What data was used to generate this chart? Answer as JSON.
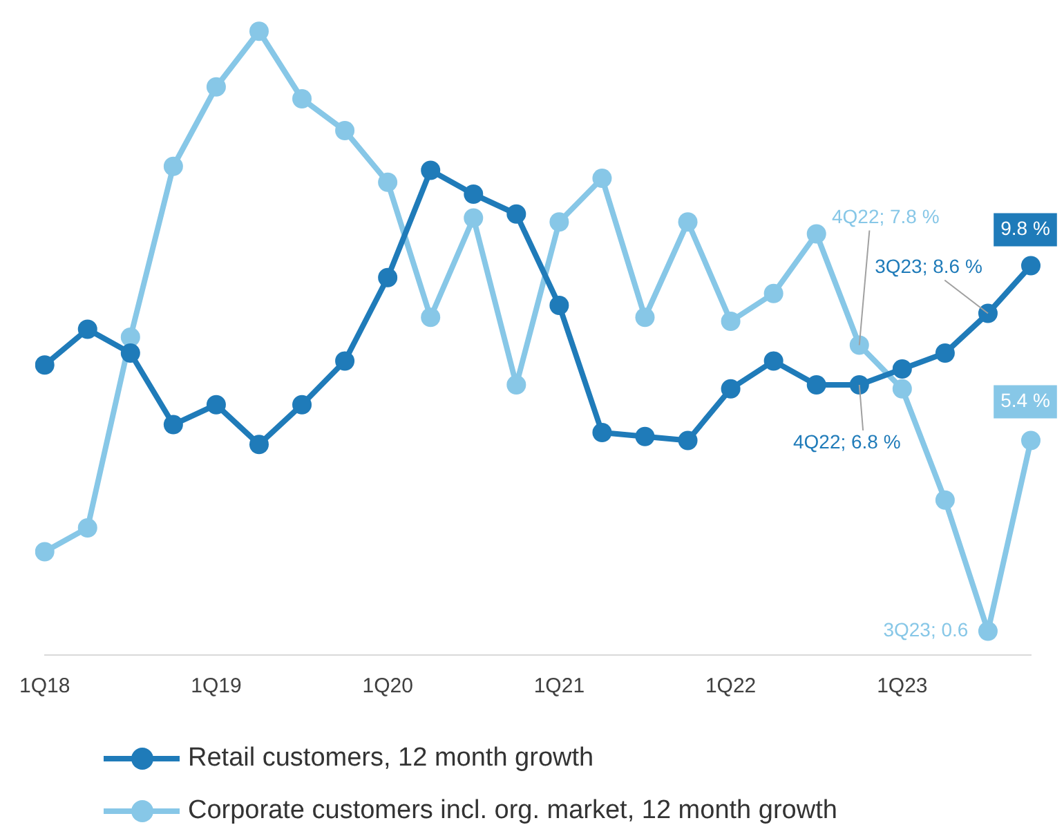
{
  "chart_data": {
    "type": "line",
    "categories": [
      "1Q18",
      null,
      null,
      null,
      "1Q19",
      null,
      null,
      null,
      "1Q20",
      null,
      null,
      null,
      "1Q21",
      null,
      null,
      null,
      "1Q22",
      null,
      null,
      null,
      "1Q23",
      null,
      null,
      null
    ],
    "grid": false,
    "legend": "bottom",
    "marker": "circle",
    "line_style": "solid",
    "tick_labels": "x",
    "series": [
      {
        "name": "Retail customers, 12 month growth",
        "color": "#1f7bb9",
        "values": [
          7.3,
          8.2,
          7.6,
          5.8,
          6.3,
          5.3,
          6.3,
          7.4,
          9.5,
          12.2,
          11.6,
          11.1,
          8.8,
          5.6,
          5.5,
          5.4,
          6.7,
          7.4,
          6.8,
          6.8,
          7.2,
          7.6,
          8.6,
          9.8
        ],
        "value_labels": [
          null,
          null,
          null,
          null,
          null,
          null,
          null,
          null,
          null,
          null,
          null,
          null,
          null,
          null,
          null,
          null,
          null,
          null,
          null,
          "4Q22; 6.8 %",
          null,
          null,
          "3Q23; 8.6 %",
          "9.8 %"
        ]
      },
      {
        "name": "Corporate customers incl. org. market, 12 month growth",
        "color": "#87c7e7",
        "values": [
          2.6,
          3.2,
          8.0,
          12.3,
          14.3,
          15.7,
          14.0,
          13.2,
          11.9,
          8.5,
          11.0,
          6.8,
          10.9,
          12.0,
          8.5,
          10.9,
          8.4,
          9.1,
          10.6,
          7.8,
          6.7,
          3.9,
          0.6,
          5.4
        ],
        "value_labels": [
          null,
          null,
          null,
          null,
          null,
          null,
          null,
          null,
          null,
          null,
          null,
          null,
          null,
          null,
          null,
          null,
          null,
          null,
          null,
          "4Q22; 7.8 %",
          null,
          null,
          "3Q23; 0.6",
          "5.4 %"
        ]
      }
    ]
  }
}
